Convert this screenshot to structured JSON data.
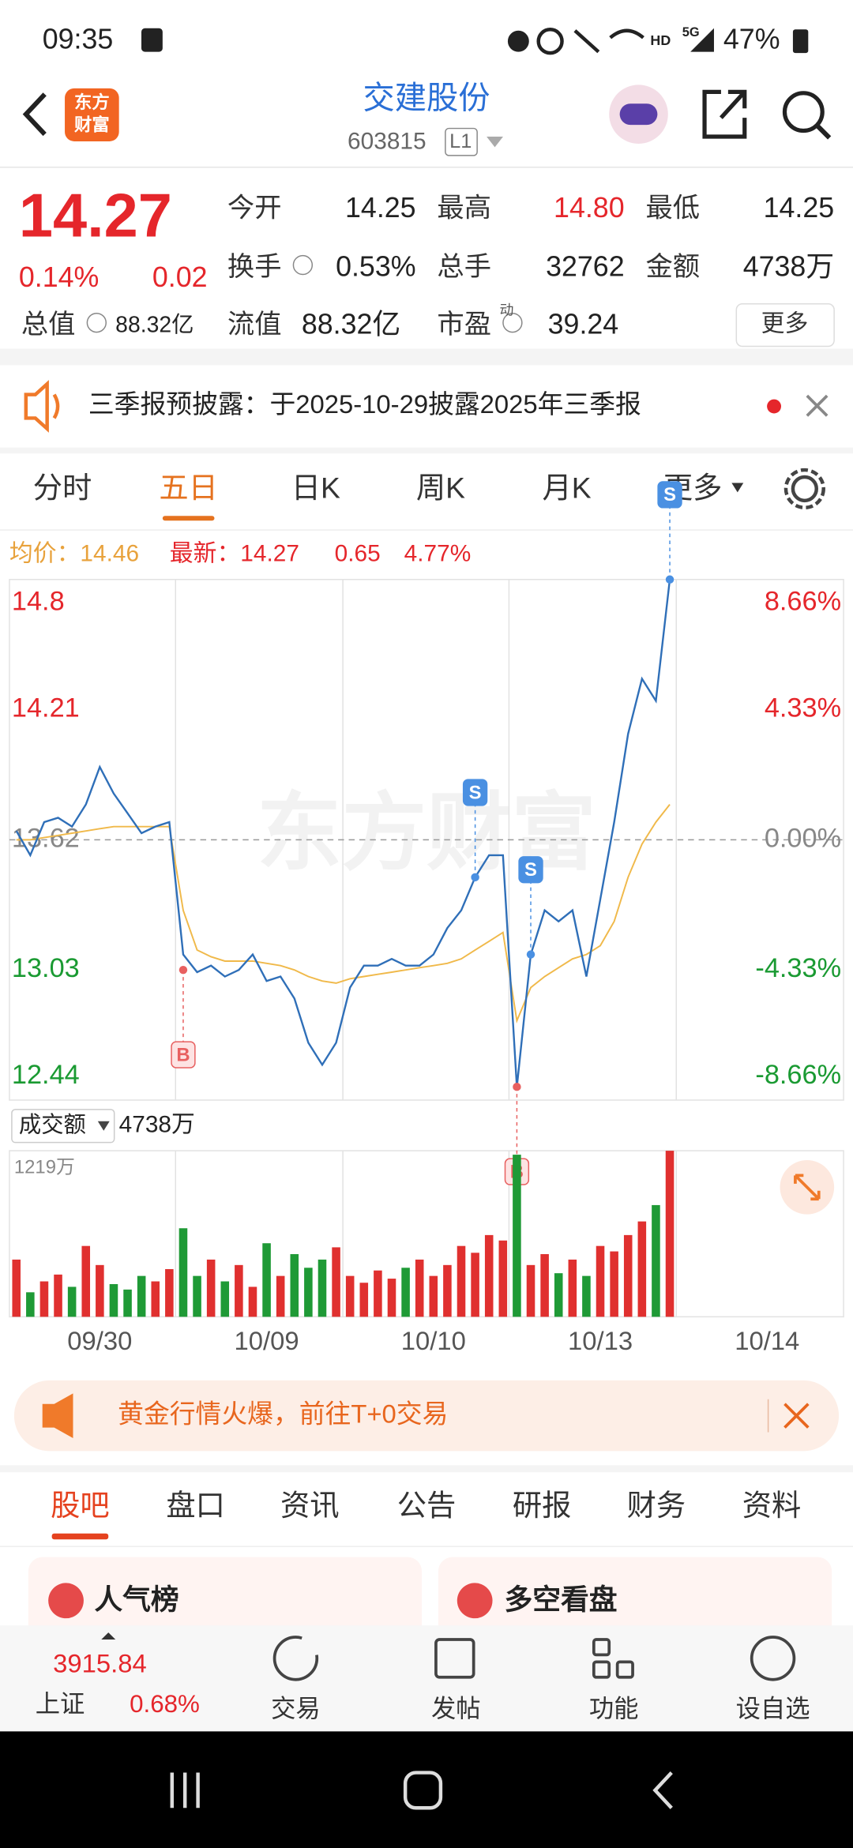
{
  "status_bar": {
    "time": "09:35",
    "network": "HD",
    "signal": "5G",
    "battery": "47%"
  },
  "header": {
    "logo": [
      "东方",
      "财富"
    ],
    "title": "交建股份",
    "code": "603815",
    "level": "L1"
  },
  "quote": {
    "price": "14.27",
    "change_pct": "0.14%",
    "change": "0.02",
    "fields": [
      {
        "label": "今开",
        "value": "14.25"
      },
      {
        "label": "最高",
        "value": "14.80"
      },
      {
        "label": "最低",
        "value": "14.25"
      },
      {
        "label": "换手",
        "value": "0.53%"
      },
      {
        "label": "总手",
        "value": "32762"
      },
      {
        "label": "金额",
        "value": "4738万"
      },
      {
        "label": "总值",
        "value": "88.32亿"
      },
      {
        "label": "流值",
        "value": "88.32亿"
      },
      {
        "label": "市盈",
        "value": "39.24"
      }
    ],
    "pe_mark": "动",
    "more": "更多"
  },
  "notice": "三季报预披露：于2025-10-29披露2025年三季报",
  "tabs": {
    "items": [
      "分时",
      "五日",
      "日K",
      "周K",
      "月K",
      "更多"
    ],
    "active": 1
  },
  "chart_info": {
    "average": "均价：14.46",
    "latest": "最新：14.27",
    "change": "0.65",
    "change_pct": "4.77%"
  },
  "watermark": "东方财富",
  "chart_data": [
    {
      "type": "line",
      "categories": [
        null,
        null,
        null,
        null,
        null,
        null,
        "09/30",
        null,
        null,
        null,
        null,
        null,
        null,
        null,
        null,
        null,
        null,
        null,
        "10/09",
        null,
        null,
        null,
        null,
        null,
        null,
        null,
        null,
        null,
        null,
        null,
        "10/10",
        null,
        null,
        null,
        null,
        null,
        null,
        null,
        null,
        null,
        null,
        null,
        "10/13",
        null,
        null,
        null,
        null,
        null,
        null,
        null,
        null,
        null,
        null,
        null,
        "10/14",
        null,
        null,
        null,
        null,
        null
      ],
      "series": [
        {
          "name": "最新",
          "color": "#2f6fb8",
          "values": [
            13.66,
            13.55,
            13.7,
            13.72,
            13.68,
            13.78,
            13.95,
            13.83,
            13.74,
            13.65,
            13.68,
            13.7,
            13.1,
            13.02,
            13.05,
            13.0,
            13.03,
            13.1,
            12.98,
            13.0,
            12.9,
            12.7,
            12.6,
            12.7,
            12.95,
            13.05,
            13.05,
            13.08,
            13.05,
            13.05,
            13.1,
            13.22,
            13.3,
            13.45,
            13.55,
            13.55,
            12.5,
            13.1,
            13.3,
            13.25,
            13.3,
            13.0,
            13.35,
            13.7,
            14.1,
            14.35,
            14.25,
            14.8,
            null,
            null,
            null,
            null,
            null,
            null,
            null,
            null,
            null,
            null,
            null,
            null
          ]
        },
        {
          "name": "均价",
          "color": "#f0b94a",
          "values": [
            13.62,
            13.62,
            13.63,
            13.64,
            13.65,
            13.66,
            13.67,
            13.68,
            13.68,
            13.68,
            13.68,
            13.68,
            13.3,
            13.12,
            13.09,
            13.07,
            13.07,
            13.07,
            13.06,
            13.05,
            13.03,
            13.0,
            12.98,
            12.97,
            12.99,
            13.0,
            13.01,
            13.02,
            13.03,
            13.04,
            13.05,
            13.06,
            13.08,
            13.12,
            13.16,
            13.2,
            12.8,
            12.95,
            13.0,
            13.04,
            13.08,
            13.1,
            13.14,
            13.25,
            13.45,
            13.6,
            13.7,
            13.78,
            null,
            null,
            null,
            null,
            null,
            null,
            null,
            null,
            null,
            null,
            null,
            null
          ]
        }
      ],
      "annotations": [
        {
          "text": "B",
          "index": 12,
          "value": 13.03
        },
        {
          "text": "S",
          "index": 33,
          "value": 13.45
        },
        {
          "text": "B",
          "index": 36,
          "value": 12.5
        },
        {
          "text": "S",
          "index": 37,
          "value": 13.1
        },
        {
          "text": "S",
          "index": 47,
          "value": 14.8
        }
      ],
      "ylim": [
        12.44,
        14.8
      ],
      "yticks": [
        12.44,
        13.03,
        13.62,
        14.21,
        14.8
      ],
      "y2lim": [
        -8.66,
        8.66
      ],
      "y2ticks": [
        {
          "value": -8.66,
          "label": "-8.66%"
        },
        {
          "value": -4.33,
          "label": "-4.33%"
        },
        {
          "value": 0,
          "label": "0.00%"
        },
        {
          "value": 4.33,
          "label": "4.33%"
        },
        {
          "value": 8.66,
          "label": "8.66%"
        }
      ],
      "grid": false
    },
    {
      "type": "bar",
      "title": "成交额",
      "subtitle": "4738万",
      "up_color": "#e0302f",
      "down_color": "#1f9a36",
      "values": [
        420,
        180,
        260,
        310,
        220,
        520,
        380,
        240,
        200,
        300,
        260,
        350,
        650,
        300,
        420,
        260,
        380,
        220,
        540,
        300,
        460,
        360,
        420,
        510,
        300,
        250,
        340,
        280,
        360,
        420,
        300,
        380,
        520,
        470,
        600,
        560,
        1190,
        380,
        460,
        320,
        420,
        300,
        520,
        480,
        600,
        700,
        820,
        1219,
        null,
        null,
        null,
        null,
        null,
        null,
        null,
        null,
        null,
        null,
        null,
        null
      ],
      "ylim": [
        0,
        1219
      ],
      "yticks": [
        {
          "value": 1219,
          "label": "1219万"
        }
      ]
    }
  ],
  "promo": "黄金行情火爆，前往T+0交易",
  "sections": {
    "items": [
      "股吧",
      "盘口",
      "资讯",
      "公告",
      "研报",
      "财务",
      "资料"
    ],
    "active": 0
  },
  "cards": [
    "人气榜",
    "多空看盘"
  ],
  "index_bar": {
    "value": "3915.84",
    "name": "上证",
    "change": "0.68%"
  },
  "actions": [
    "交易",
    "发帖",
    "功能",
    "设自选"
  ]
}
